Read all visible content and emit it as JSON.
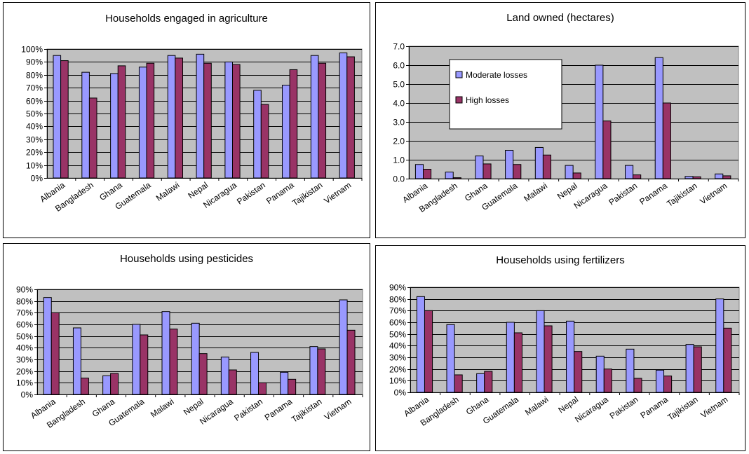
{
  "colors": {
    "moderate": "#9999FF",
    "high": "#993366",
    "plot_bg": "#C0C0C0"
  },
  "chart_data": [
    {
      "type": "bar",
      "title": "Households engaged in agriculture",
      "categories": [
        "Albania",
        "Bangladesh",
        "Ghana",
        "Guatemala",
        "Malawi",
        "Nepal",
        "Nicaragua",
        "Pakistan",
        "Panama",
        "Tajikistan",
        "Vietnam"
      ],
      "series": [
        {
          "values": [
            0.95,
            0.82,
            0.81,
            0.86,
            0.95,
            0.96,
            0.9,
            0.68,
            0.72,
            0.95,
            0.97
          ]
        },
        {
          "values": [
            0.91,
            0.62,
            0.87,
            0.89,
            0.93,
            0.89,
            0.88,
            0.57,
            0.84,
            0.89,
            0.94
          ]
        }
      ],
      "ylim": [
        0,
        1
      ],
      "yticks": [
        0,
        0.1,
        0.2,
        0.3,
        0.4,
        0.5,
        0.6,
        0.7,
        0.8,
        0.9,
        1.0
      ],
      "ytick_labels": [
        "0%",
        "10%",
        "20%",
        "30%",
        "40%",
        "50%",
        "60%",
        "70%",
        "80%",
        "90%",
        "100%"
      ],
      "xlabel": "",
      "ylabel": "",
      "grid": true,
      "legend": "none"
    },
    {
      "type": "bar",
      "title": "Land owned (hectares)",
      "categories": [
        "Albania",
        "Bangladesh",
        "Ghana",
        "Guatemala",
        "Malawi",
        "Nepal",
        "Nicaragua",
        "Pakistan",
        "Panama",
        "Tajikistan",
        "Vietnam"
      ],
      "series": [
        {
          "name": "Moderate losses",
          "values": [
            0.75,
            0.35,
            1.2,
            1.5,
            1.65,
            0.7,
            6.0,
            0.7,
            6.4,
            0.12,
            0.25
          ]
        },
        {
          "name": "High losses",
          "values": [
            0.5,
            0.05,
            0.78,
            0.75,
            1.25,
            0.3,
            3.05,
            0.2,
            4.0,
            0.1,
            0.15
          ]
        }
      ],
      "ylim": [
        0,
        7
      ],
      "yticks": [
        0,
        1,
        2,
        3,
        4,
        5,
        6,
        7
      ],
      "ytick_labels": [
        "0.0",
        "1.0",
        "2.0",
        "3.0",
        "4.0",
        "5.0",
        "6.0",
        "7.0"
      ],
      "xlabel": "",
      "ylabel": "",
      "grid": true,
      "legend": "top-left"
    },
    {
      "type": "bar",
      "title": "Households using pesticides",
      "categories": [
        "Albania",
        "Bangladesh",
        "Ghana",
        "Guatemala",
        "Malawi",
        "Nepal",
        "Nicaragua",
        "Pakistan",
        "Panama",
        "Tajikistan",
        "Vietnam"
      ],
      "series": [
        {
          "values": [
            0.83,
            0.57,
            0.16,
            0.6,
            0.71,
            0.61,
            0.32,
            0.36,
            0.19,
            0.41,
            0.81
          ]
        },
        {
          "values": [
            0.7,
            0.14,
            0.18,
            0.51,
            0.56,
            0.35,
            0.21,
            0.1,
            0.13,
            0.39,
            0.55
          ]
        }
      ],
      "ylim": [
        0,
        0.9
      ],
      "yticks": [
        0,
        0.1,
        0.2,
        0.3,
        0.4,
        0.5,
        0.6,
        0.7,
        0.8,
        0.9
      ],
      "ytick_labels": [
        "0%",
        "10%",
        "20%",
        "30%",
        "40%",
        "50%",
        "60%",
        "70%",
        "80%",
        "90%"
      ],
      "xlabel": "",
      "ylabel": "",
      "grid": true,
      "legend": "none"
    },
    {
      "type": "bar",
      "title": "Households using fertilizers",
      "categories": [
        "Albania",
        "Bangladesh",
        "Ghana",
        "Guatemala",
        "Malawi",
        "Nepal",
        "Nicaragua",
        "Pakistan",
        "Panama",
        "Tajikistan",
        "Vietnam"
      ],
      "series": [
        {
          "values": [
            0.82,
            0.58,
            0.16,
            0.6,
            0.7,
            0.61,
            0.31,
            0.37,
            0.19,
            0.41,
            0.8
          ]
        },
        {
          "values": [
            0.7,
            0.15,
            0.18,
            0.51,
            0.57,
            0.35,
            0.2,
            0.12,
            0.14,
            0.39,
            0.55
          ]
        }
      ],
      "ylim": [
        0,
        0.9
      ],
      "yticks": [
        0,
        0.1,
        0.2,
        0.3,
        0.4,
        0.5,
        0.6,
        0.7,
        0.8,
        0.9
      ],
      "ytick_labels": [
        "0%",
        "10%",
        "20%",
        "30%",
        "40%",
        "50%",
        "60%",
        "70%",
        "80%",
        "90%"
      ],
      "xlabel": "",
      "ylabel": "",
      "grid": true,
      "legend": "none"
    }
  ]
}
